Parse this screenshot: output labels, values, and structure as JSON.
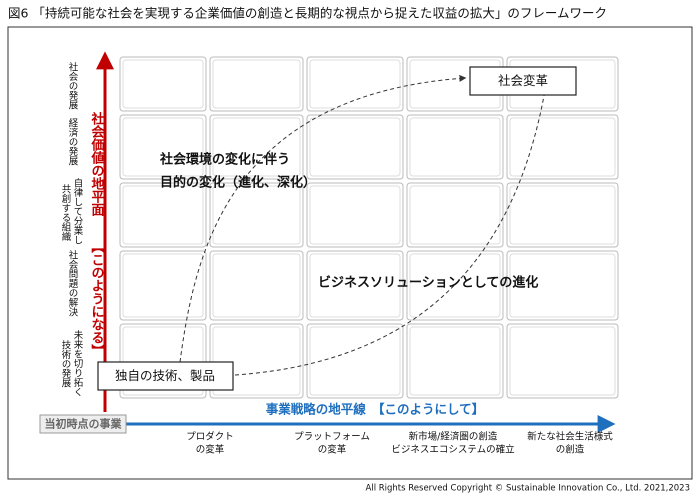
{
  "title": "図6 「持続可能な社会を実現する企業価値の創造と長期的な視点から捉えた収益の拡大」のフレームワーク",
  "y_axis": {
    "title": "社会価値の地平面",
    "subtitle": "【このようになる】",
    "labels": [
      [
        "社会の発展"
      ],
      [
        "経済の発展"
      ],
      [
        "自律して分業し",
        "共創する組織"
      ],
      [
        "社会問題の解決"
      ],
      [
        "未来を切り拓く",
        "技術の発展"
      ]
    ]
  },
  "x_axis": {
    "title": "事業戦略の地平線　【このようにして】",
    "origin": "当初時点の事業",
    "labels": [
      [
        "プロダクト",
        "の変革"
      ],
      [
        "プラットフォーム",
        "の変革"
      ],
      [
        "新市場/経済圏の創造",
        "ビジネスエコシステムの確立"
      ],
      [
        "新たな社会生活様式",
        "の創造"
      ]
    ]
  },
  "nodes": [
    {
      "label": "社会変革"
    },
    {
      "label": "独自の技術、製品"
    }
  ],
  "annotations": [
    [
      "社会環境の変化に伴う",
      "目的の変化（進化、深化）"
    ],
    [
      "ビジネスソリューションとしての進化"
    ]
  ],
  "footer": "All Rights Reserved Copyright © Sustainable Innovation Co., Ltd.  2021,2023"
}
